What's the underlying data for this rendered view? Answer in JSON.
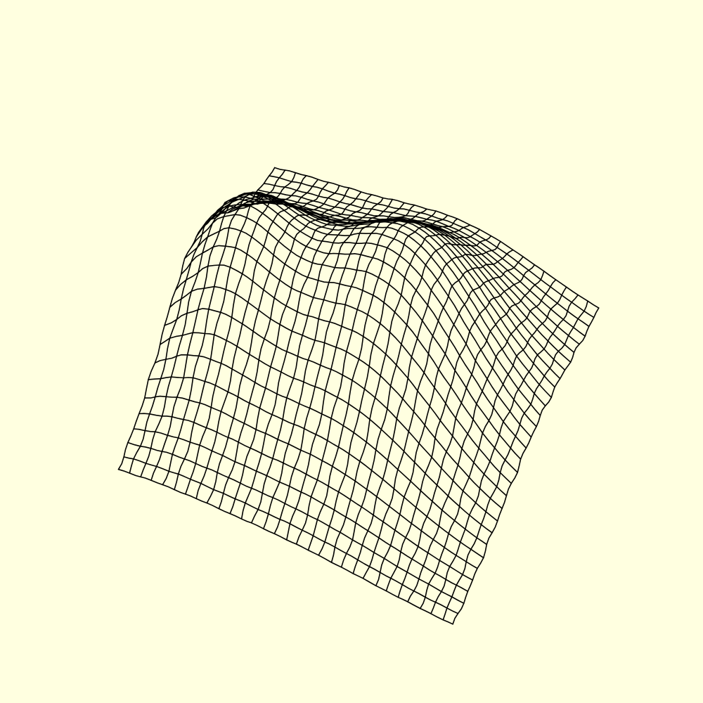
{
  "scene": {
    "background_color": "#ffffe0",
    "line_color": "#000000",
    "surface_type": "wireframe-mesh",
    "grid_resolution": 30
  }
}
